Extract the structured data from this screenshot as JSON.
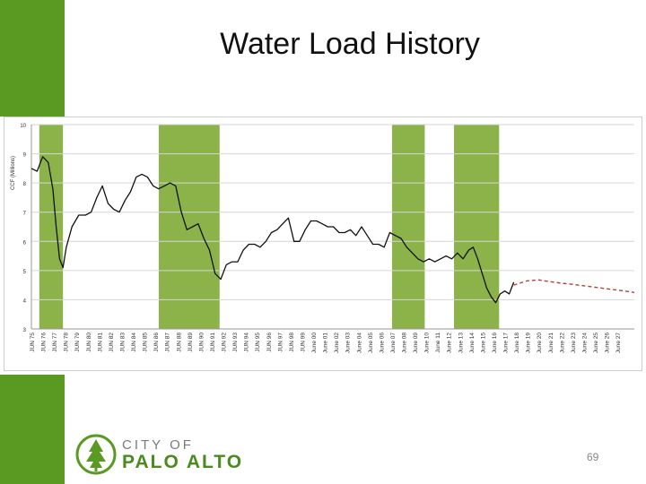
{
  "slide": {
    "title": "Water Load History",
    "page_number": "69"
  },
  "logo": {
    "line1": "CITY OF",
    "line2": "PALO ALTO",
    "icon": "tree-icon"
  },
  "colors": {
    "accent_green": "#5a9a23",
    "band_green": "#8cb24a",
    "history_line": "#111111",
    "forecast_line": "#b5403a"
  },
  "chart_data": {
    "type": "line",
    "title": "Water Load History",
    "ylabel": "CCF (Millions)",
    "xlabel": "",
    "ylim": [
      3,
      10
    ],
    "yticks": [
      "3",
      "4",
      "5",
      "6",
      "7",
      "8",
      "9",
      "10"
    ],
    "xlim": [
      1975,
      2028.5
    ],
    "categories": [
      "JUN 75",
      "JUN 76",
      "JUN 77",
      "JUN 78",
      "JUN 79",
      "JUN 80",
      "JUN 81",
      "JUN 82",
      "JUN 83",
      "JUN 84",
      "JUN 85",
      "JUN 86",
      "JUN 87",
      "JUN 88",
      "JUN 89",
      "JUN 90",
      "JUN 91",
      "JUN 92",
      "JUN 93",
      "JUN 94",
      "JUN 95",
      "JUN 96",
      "JUN 97",
      "JUN 98",
      "JUN 99",
      "June 00",
      "June 01",
      "June 02",
      "June 03",
      "June 04",
      "June 05",
      "June 06",
      "June 07",
      "June 08",
      "June 09",
      "June 10",
      "June 11",
      "June 12",
      "June 13",
      "June 14",
      "June 15",
      "June 16",
      "June 17",
      "June 18",
      "June 19",
      "June 20",
      "June 21",
      "June 22",
      "June 23",
      "June 24",
      "June 25",
      "June 26",
      "June 27"
    ],
    "drought_periods": [
      {
        "start": 1975.7,
        "end": 1977.8
      },
      {
        "start": 1986.3,
        "end": 1991.7
      },
      {
        "start": 2007.0,
        "end": 2009.9
      },
      {
        "start": 2012.5,
        "end": 2016.5
      }
    ],
    "series": [
      {
        "name": "Actual",
        "style": "solid",
        "x": [
          1975.0,
          1975.5,
          1976.0,
          1976.5,
          1976.9,
          1977.2,
          1977.5,
          1977.8,
          1978.1,
          1978.6,
          1979.2,
          1979.8,
          1980.3,
          1980.8,
          1981.3,
          1981.8,
          1982.3,
          1982.8,
          1983.3,
          1983.8,
          1984.3,
          1984.8,
          1985.3,
          1985.8,
          1986.3,
          1986.8,
          1987.3,
          1987.8,
          1988.3,
          1988.8,
          1989.3,
          1989.8,
          1990.3,
          1990.8,
          1991.3,
          1991.8,
          1992.3,
          1992.8,
          1993.3,
          1993.8,
          1994.3,
          1994.8,
          1995.3,
          1995.8,
          1996.3,
          1996.8,
          1997.3,
          1997.8,
          1998.3,
          1998.8,
          1999.3,
          1999.8,
          2000.3,
          2000.8,
          2001.3,
          2001.8,
          2002.3,
          2002.8,
          2003.3,
          2003.8,
          2004.3,
          2004.8,
          2005.3,
          2005.8,
          2006.3,
          2006.8,
          2007.3,
          2007.8,
          2008.3,
          2008.8,
          2009.3,
          2009.8,
          2010.3,
          2010.8,
          2011.3,
          2011.8,
          2012.3,
          2012.8,
          2013.3,
          2013.8,
          2014.2,
          2014.6,
          2015.0,
          2015.4,
          2015.8,
          2016.2,
          2016.6,
          2017.0,
          2017.4,
          2017.8
        ],
        "values": [
          8.5,
          8.4,
          8.9,
          8.7,
          7.8,
          6.5,
          5.4,
          5.1,
          5.8,
          6.5,
          6.9,
          6.9,
          7.0,
          7.5,
          7.9,
          7.3,
          7.1,
          7.0,
          7.4,
          7.7,
          8.2,
          8.3,
          8.2,
          7.9,
          7.8,
          7.9,
          8.0,
          7.9,
          7.0,
          6.4,
          6.5,
          6.6,
          6.1,
          5.7,
          4.9,
          4.7,
          5.2,
          5.3,
          5.3,
          5.7,
          5.9,
          5.9,
          5.8,
          6.0,
          6.3,
          6.4,
          6.6,
          6.8,
          6.0,
          6.0,
          6.4,
          6.7,
          6.7,
          6.6,
          6.5,
          6.5,
          6.3,
          6.3,
          6.4,
          6.2,
          6.5,
          6.2,
          5.9,
          5.9,
          5.8,
          6.3,
          6.2,
          6.1,
          5.8,
          5.6,
          5.4,
          5.3,
          5.4,
          5.3,
          5.4,
          5.5,
          5.4,
          5.6,
          5.4,
          5.7,
          5.8,
          5.4,
          4.9,
          4.4,
          4.1,
          3.9,
          4.2,
          4.3,
          4.2,
          4.6
        ]
      },
      {
        "name": "Forecast",
        "style": "dashed",
        "x": [
          2017.8,
          2019.0,
          2020.0,
          2021.0,
          2022.0,
          2023.0,
          2024.0,
          2025.0,
          2026.0,
          2027.0,
          2028.0,
          2028.5
        ],
        "values": [
          4.5,
          4.65,
          4.68,
          4.62,
          4.57,
          4.53,
          4.48,
          4.43,
          4.38,
          4.33,
          4.28,
          4.25
        ]
      }
    ]
  }
}
